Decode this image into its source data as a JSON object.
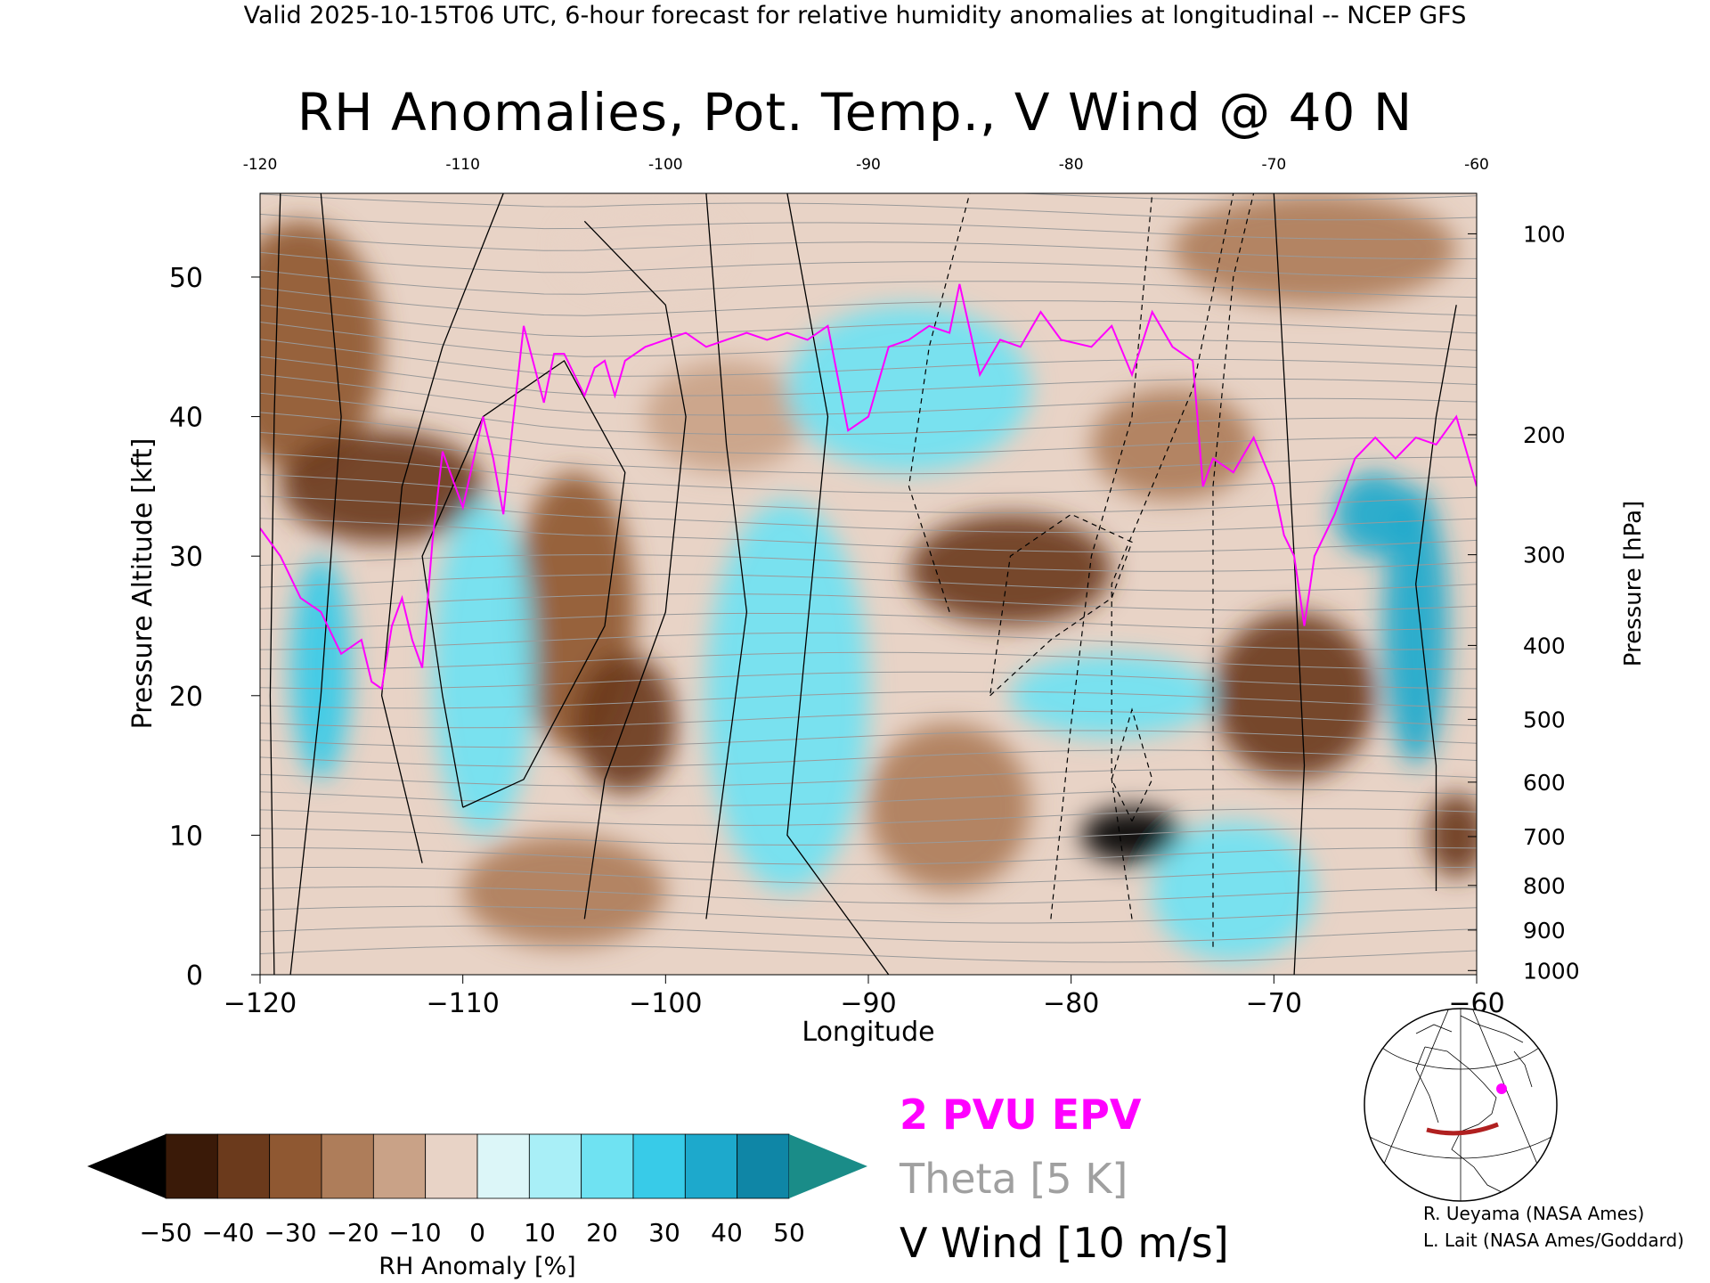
{
  "header": {
    "text": "Valid 2025-10-15T06 UTC, 6-hour forecast for relative humidity anomalies at longitudinal -- NCEP GFS"
  },
  "title": "RH Anomalies, Pot. Temp., V Wind @ 40 N",
  "chart_data": {
    "type": "heatmap",
    "title": "RH Anomalies, Pot. Temp., V Wind @ 40 N",
    "xlabel": "Longitude",
    "ylabel_left": "Pressure Altitude [kft]",
    "ylabel_right": "Pressure [hPa]",
    "xlim": [
      -120,
      -60
    ],
    "ylim": [
      0,
      56
    ],
    "x_ticks": [
      "−120",
      "−110",
      "−100",
      "−90",
      "−80",
      "−70",
      "−60"
    ],
    "x_top_ticks": [
      "-120",
      "-110",
      "-100",
      "-90",
      "-80",
      "-70",
      "-60"
    ],
    "y_left_ticks": [
      "0",
      "10",
      "20",
      "30",
      "40",
      "50"
    ],
    "y_right_ticks": [
      {
        "label": "100",
        "kft": 53.1
      },
      {
        "label": "200",
        "kft": 38.7
      },
      {
        "label": "300",
        "kft": 30.1
      },
      {
        "label": "400",
        "kft": 23.6
      },
      {
        "label": "500",
        "kft": 18.3
      },
      {
        "label": "600",
        "kft": 13.8
      },
      {
        "label": "700",
        "kft": 9.9
      },
      {
        "label": "800",
        "kft": 6.4
      },
      {
        "label": "900",
        "kft": 3.2
      },
      {
        "label": "1000",
        "kft": 0.3
      }
    ],
    "colorbar": {
      "label": "RH Anomaly [%]",
      "ticks": [
        "−50",
        "−40",
        "−30",
        "−20",
        "−10",
        "0",
        "10",
        "20",
        "30",
        "40",
        "50"
      ],
      "colors": [
        "#3a1a08",
        "#6b3a1c",
        "#8f5832",
        "#ae7d5a",
        "#c9a287",
        "#e8d3c6",
        "#dcf6f8",
        "#a9eff7",
        "#6fe2f2",
        "#38cbe8",
        "#1da9cc",
        "#0f86a6"
      ],
      "under_color": "#000000",
      "over_color": "#1a8c88"
    },
    "rh_anomaly_blobs": [
      {
        "lon": -118,
        "kft": 45,
        "rx": 4,
        "ry": 9,
        "value": -30
      },
      {
        "lon": -114,
        "kft": 35,
        "rx": 5,
        "ry": 4,
        "value": -40
      },
      {
        "lon": -104.5,
        "kft": 26,
        "rx": 3,
        "ry": 10,
        "value": -30
      },
      {
        "lon": -102,
        "kft": 18,
        "rx": 2.5,
        "ry": 5,
        "value": -40
      },
      {
        "lon": -105,
        "kft": 6,
        "rx": 5,
        "ry": 4,
        "value": -15
      },
      {
        "lon": -101,
        "kft": 52,
        "rx": 4,
        "ry": 3,
        "value": -5
      },
      {
        "lon": -97,
        "kft": 40,
        "rx": 4,
        "ry": 4,
        "value": -10
      },
      {
        "lon": -83,
        "kft": 29,
        "rx": 5,
        "ry": 4,
        "value": -40
      },
      {
        "lon": -86,
        "kft": 12,
        "rx": 4,
        "ry": 6,
        "value": -20
      },
      {
        "lon": -77,
        "kft": 10,
        "rx": 2.5,
        "ry": 2,
        "value": -55
      },
      {
        "lon": -75,
        "kft": 38,
        "rx": 4,
        "ry": 4,
        "value": -20
      },
      {
        "lon": -69,
        "kft": 20,
        "rx": 4,
        "ry": 6,
        "value": -35
      },
      {
        "lon": -68,
        "kft": 52,
        "rx": 7,
        "ry": 4,
        "value": -15
      },
      {
        "lon": -61,
        "kft": 10,
        "rx": 1.5,
        "ry": 3,
        "value": -35
      },
      {
        "lon": -94,
        "kft": 20,
        "rx": 4,
        "ry": 14,
        "value": 25
      },
      {
        "lon": -109,
        "kft": 22,
        "rx": 2.5,
        "ry": 12,
        "value": 20
      },
      {
        "lon": -117,
        "kft": 22,
        "rx": 1.5,
        "ry": 8,
        "value": 35
      },
      {
        "lon": -88,
        "kft": 42,
        "rx": 6,
        "ry": 6,
        "value": 20
      },
      {
        "lon": -78,
        "kft": 20,
        "rx": 5,
        "ry": 3,
        "value": 20
      },
      {
        "lon": -72,
        "kft": 6,
        "rx": 4,
        "ry": 5,
        "value": 20
      },
      {
        "lon": -63,
        "kft": 25,
        "rx": 1.6,
        "ry": 10,
        "value": 45
      },
      {
        "lon": -65,
        "kft": 33,
        "rx": 2,
        "ry": 3,
        "value": 40
      }
    ],
    "theta_contours_K": [
      "290",
      "300",
      "310",
      "320",
      "330",
      "340",
      "350",
      "360",
      "370",
      "380",
      "390",
      "400",
      "410",
      "420"
    ],
    "theta_contour_interval_K": 5,
    "epv_2pvu_line_kft": [
      [
        -120,
        32
      ],
      [
        -119,
        30
      ],
      [
        -118,
        27
      ],
      [
        -117,
        26
      ],
      [
        -116,
        23
      ],
      [
        -115,
        24
      ],
      [
        -114.5,
        21
      ],
      [
        -114,
        20.5
      ],
      [
        -113.5,
        25
      ],
      [
        -113,
        27
      ],
      [
        -112.5,
        24
      ],
      [
        -112,
        22
      ],
      [
        -111.5,
        31
      ],
      [
        -111,
        37.5
      ],
      [
        -110,
        33.5
      ],
      [
        -109,
        40
      ],
      [
        -108.5,
        37
      ],
      [
        -108,
        33
      ],
      [
        -107.5,
        40
      ],
      [
        -107,
        46.5
      ],
      [
        -106,
        41
      ],
      [
        -105.5,
        44.5
      ],
      [
        -105,
        44.5
      ],
      [
        -104,
        41.5
      ],
      [
        -103.5,
        43.5
      ],
      [
        -103,
        44
      ],
      [
        -102.5,
        41.5
      ],
      [
        -102,
        44
      ],
      [
        -101,
        45
      ],
      [
        -100,
        45.5
      ],
      [
        -99,
        46
      ],
      [
        -98,
        45
      ],
      [
        -97,
        45.5
      ],
      [
        -96,
        46
      ],
      [
        -95,
        45.5
      ],
      [
        -94,
        46
      ],
      [
        -93,
        45.5
      ],
      [
        -92,
        46.5
      ],
      [
        -91,
        39
      ],
      [
        -90,
        40
      ],
      [
        -89,
        45
      ],
      [
        -88,
        45.5
      ],
      [
        -87,
        46.5
      ],
      [
        -86,
        46
      ],
      [
        -85.5,
        49.5
      ],
      [
        -84.5,
        43
      ],
      [
        -83.5,
        45.5
      ],
      [
        -82.5,
        45
      ],
      [
        -81.5,
        47.5
      ],
      [
        -80.5,
        45.5
      ],
      [
        -79,
        45
      ],
      [
        -78,
        46.5
      ],
      [
        -77,
        43
      ],
      [
        -76,
        47.5
      ],
      [
        -75,
        45
      ],
      [
        -74,
        44
      ],
      [
        -73.5,
        35
      ],
      [
        -73,
        37
      ],
      [
        -72,
        36
      ],
      [
        -71,
        38.5
      ],
      [
        -70,
        35
      ],
      [
        -69.5,
        31.5
      ],
      [
        -69,
        30
      ],
      [
        -68.5,
        25
      ],
      [
        -68,
        30
      ],
      [
        -67,
        33
      ],
      [
        -66,
        37
      ],
      [
        -65,
        38.5
      ],
      [
        -64,
        37
      ],
      [
        -63,
        38.5
      ],
      [
        -62,
        38
      ],
      [
        -61,
        40
      ],
      [
        -60,
        35
      ]
    ],
    "v_wind_contour_labels": [
      "0",
      "10",
      "20",
      "30",
      "-10",
      "-20",
      "-30"
    ],
    "v_wind_contour_interval_ms": 10,
    "legend": [
      {
        "label": "2 PVU EPV",
        "color": "#ff00ff"
      },
      {
        "label": "Theta [5 K]",
        "color": "#a0a0a0"
      },
      {
        "label": "V Wind [10 m/s]",
        "color": "#000000"
      }
    ]
  },
  "inset_map": {
    "transect_color": "#b02020",
    "marker_color": "#ff00ff"
  },
  "credits": [
    "R. Ueyama (NASA Ames)",
    "L. Lait (NASA Ames/Goddard)"
  ]
}
